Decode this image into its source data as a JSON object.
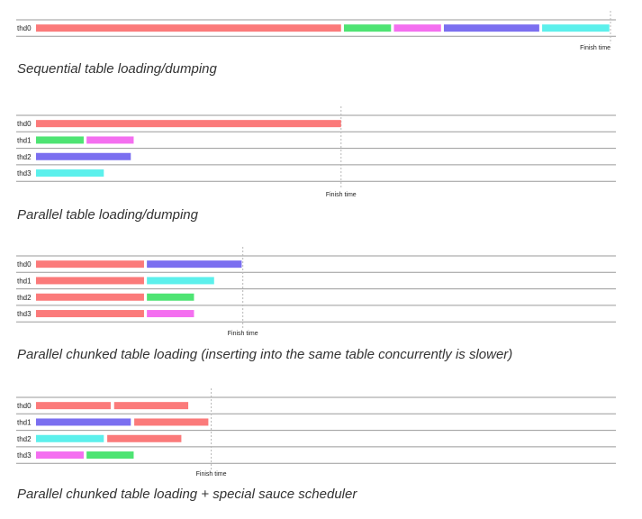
{
  "colors": {
    "red": "#fb7a7a",
    "green": "#4ee473",
    "magenta": "#f46ff0",
    "purple": "#7b6ff0",
    "cyan": "#5cf0ec",
    "row_line": "#9a9a9a",
    "finish_line": "#b8b8b8"
  },
  "finish_label": "Finish time",
  "panels": [
    {
      "caption": "Sequential table loading/dumping",
      "time_range": [
        0,
        100
      ],
      "finish": 100,
      "rows": [
        {
          "label": "thd0",
          "tasks": [
            {
              "start": 0,
              "end": 53.1,
              "color": "red"
            },
            {
              "start": 53.6,
              "end": 61.8,
              "color": "green"
            },
            {
              "start": 62.3,
              "end": 70.5,
              "color": "magenta"
            },
            {
              "start": 71.0,
              "end": 87.6,
              "color": "purple"
            },
            {
              "start": 88.1,
              "end": 99.8,
              "color": "cyan"
            }
          ]
        }
      ]
    },
    {
      "caption": "Parallel table loading/dumping",
      "time_range": [
        0,
        100
      ],
      "finish": 53.1,
      "rows": [
        {
          "label": "thd0",
          "tasks": [
            {
              "start": 0,
              "end": 53.1,
              "color": "red"
            }
          ]
        },
        {
          "label": "thd1",
          "tasks": [
            {
              "start": 0,
              "end": 8.3,
              "color": "green"
            },
            {
              "start": 8.8,
              "end": 17.0,
              "color": "magenta"
            }
          ]
        },
        {
          "label": "thd2",
          "tasks": [
            {
              "start": 0,
              "end": 16.5,
              "color": "purple"
            }
          ]
        },
        {
          "label": "thd3",
          "tasks": [
            {
              "start": 0,
              "end": 11.8,
              "color": "cyan"
            }
          ]
        }
      ]
    },
    {
      "caption": "Parallel chunked table loading (inserting into the same table concurrently is slower)",
      "time_range": [
        0,
        100
      ],
      "finish": 36.0,
      "rows": [
        {
          "label": "thd0",
          "tasks": [
            {
              "start": 0,
              "end": 18.8,
              "color": "red"
            },
            {
              "start": 19.3,
              "end": 35.8,
              "color": "purple"
            }
          ]
        },
        {
          "label": "thd1",
          "tasks": [
            {
              "start": 0,
              "end": 18.8,
              "color": "red"
            },
            {
              "start": 19.3,
              "end": 31.0,
              "color": "cyan"
            }
          ]
        },
        {
          "label": "thd2",
          "tasks": [
            {
              "start": 0,
              "end": 18.8,
              "color": "red"
            },
            {
              "start": 19.3,
              "end": 27.5,
              "color": "green"
            }
          ]
        },
        {
          "label": "thd3",
          "tasks": [
            {
              "start": 0,
              "end": 18.8,
              "color": "red"
            },
            {
              "start": 19.3,
              "end": 27.5,
              "color": "magenta"
            }
          ]
        }
      ]
    },
    {
      "caption": "Parallel chunked table loading + special sauce scheduler",
      "time_range": [
        0,
        100
      ],
      "finish": 30.5,
      "rows": [
        {
          "label": "thd0",
          "tasks": [
            {
              "start": 0,
              "end": 13.0,
              "color": "red"
            },
            {
              "start": 13.6,
              "end": 26.5,
              "color": "red"
            }
          ]
        },
        {
          "label": "thd1",
          "tasks": [
            {
              "start": 0,
              "end": 16.5,
              "color": "purple"
            },
            {
              "start": 17.1,
              "end": 30.0,
              "color": "red"
            }
          ]
        },
        {
          "label": "thd2",
          "tasks": [
            {
              "start": 0,
              "end": 11.8,
              "color": "cyan"
            },
            {
              "start": 12.4,
              "end": 25.3,
              "color": "red"
            }
          ]
        },
        {
          "label": "thd3",
          "tasks": [
            {
              "start": 0,
              "end": 8.3,
              "color": "magenta"
            },
            {
              "start": 8.8,
              "end": 17.0,
              "color": "green"
            }
          ]
        }
      ]
    }
  ]
}
